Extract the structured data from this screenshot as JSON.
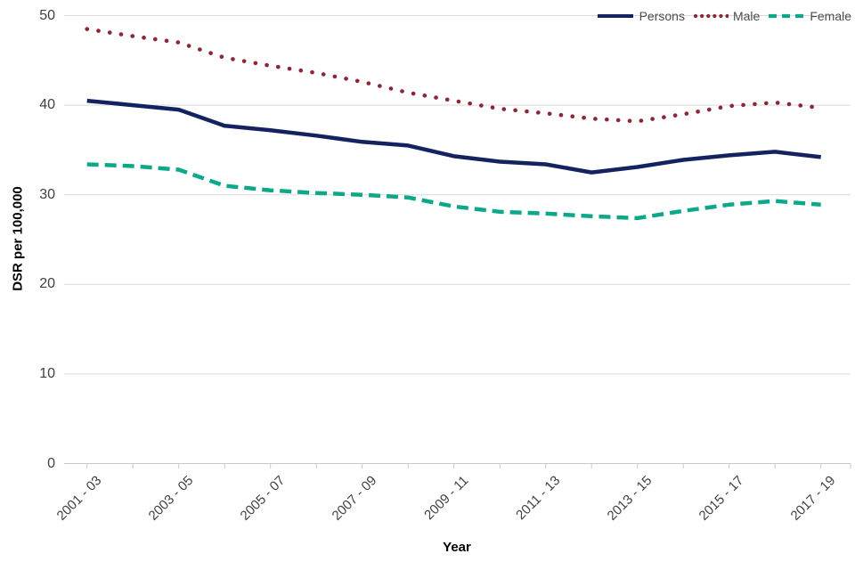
{
  "chart_data": {
    "type": "line",
    "xlabel": "Year",
    "ylabel": "DSR per 100,000",
    "ylim": [
      0,
      50
    ],
    "yticks": [
      0,
      10,
      20,
      30,
      40,
      50
    ],
    "grid": "horizontal",
    "legend_position": "top-right",
    "categories": [
      "2001 - 03",
      "2002 - 04",
      "2003 - 05",
      "2004 - 06",
      "2005 - 07",
      "2006 - 08",
      "2007 - 09",
      "2008 - 10",
      "2009 - 11",
      "2010 - 12",
      "2011 - 13",
      "2012 - 14",
      "2013 - 15",
      "2014 - 16",
      "2015 - 17",
      "2016 - 18",
      "2017 - 19"
    ],
    "xtick_labels": [
      "2001 - 03",
      "2003 - 05",
      "2005 - 07",
      "2007 - 09",
      "2009 - 11",
      "2011 - 13",
      "2013 - 15",
      "2015 - 17",
      "2017 - 19"
    ],
    "series": [
      {
        "name": "Persons",
        "style": "solid",
        "color": "#14235f",
        "values": [
          40.5,
          40.0,
          39.5,
          37.7,
          37.2,
          36.6,
          35.9,
          35.5,
          34.3,
          33.7,
          33.4,
          32.5,
          33.1,
          33.9,
          34.4,
          34.8,
          34.2
        ]
      },
      {
        "name": "Male",
        "style": "dotted",
        "color": "#8c2737",
        "values": [
          48.5,
          47.7,
          47.0,
          45.3,
          44.4,
          43.6,
          42.6,
          41.4,
          40.5,
          39.6,
          39.1,
          38.5,
          38.2,
          39.0,
          39.9,
          40.3,
          39.7
        ]
      },
      {
        "name": "Female",
        "style": "dashed",
        "color": "#0da889",
        "values": [
          33.4,
          33.2,
          32.8,
          31.0,
          30.5,
          30.2,
          30.0,
          29.7,
          28.7,
          28.1,
          27.9,
          27.6,
          27.4,
          28.2,
          28.9,
          29.3,
          28.9
        ]
      }
    ],
    "colors": {
      "gridline": "#d9d9d9",
      "axis_line": "#c9c9c9",
      "tick_text": "#404040",
      "legend_text": "#4d4d4d"
    }
  }
}
